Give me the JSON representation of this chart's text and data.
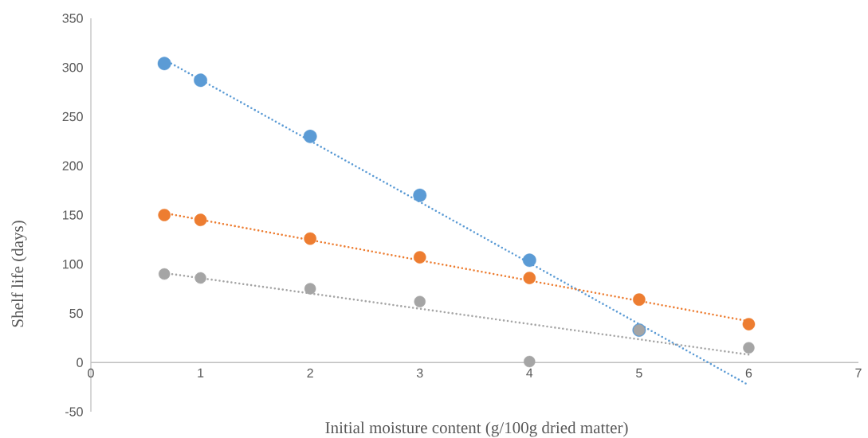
{
  "chart_data": {
    "type": "scatter",
    "xlabel": "Initial moisture content (g/100g dried matter)",
    "ylabel": "Shelf life (days)",
    "xlim": [
      0,
      7
    ],
    "ylim": [
      -50,
      350
    ],
    "xticks": [
      0,
      1,
      2,
      3,
      4,
      5,
      6,
      7
    ],
    "yticks": [
      -50,
      0,
      50,
      100,
      150,
      200,
      250,
      300,
      350
    ],
    "grid": false,
    "series": [
      {
        "type": "line",
        "color": "#5b9bd5",
        "marker": "none",
        "line_style": "dotted",
        "x": [
          0.67,
          6
        ],
        "values": [
          308,
          -23
        ]
      },
      {
        "type": "line",
        "color": "#ed7d31",
        "marker": "none",
        "line_style": "dotted",
        "x": [
          0.67,
          6
        ],
        "values": [
          152,
          42
        ]
      },
      {
        "type": "line",
        "color": "#a5a5a5",
        "marker": "none",
        "line_style": "dotted",
        "x": [
          0.67,
          6
        ],
        "values": [
          91,
          8
        ]
      },
      {
        "color": "#5b9bd5",
        "marker": "circle",
        "x": [
          0.67,
          1,
          2,
          3,
          4,
          5
        ],
        "values": [
          304,
          287,
          230,
          170,
          104,
          33
        ]
      },
      {
        "color": "#ed7d31",
        "marker": "circle",
        "x": [
          0.67,
          1,
          2,
          3,
          4,
          5,
          6
        ],
        "values": [
          150,
          145,
          126,
          107,
          86,
          64,
          39
        ]
      },
      {
        "color": "#a5a5a5",
        "marker": "circle",
        "x": [
          0.67,
          1,
          2,
          3,
          4,
          5,
          6
        ],
        "values": [
          90,
          86,
          75,
          62,
          1,
          33,
          15
        ]
      }
    ]
  }
}
